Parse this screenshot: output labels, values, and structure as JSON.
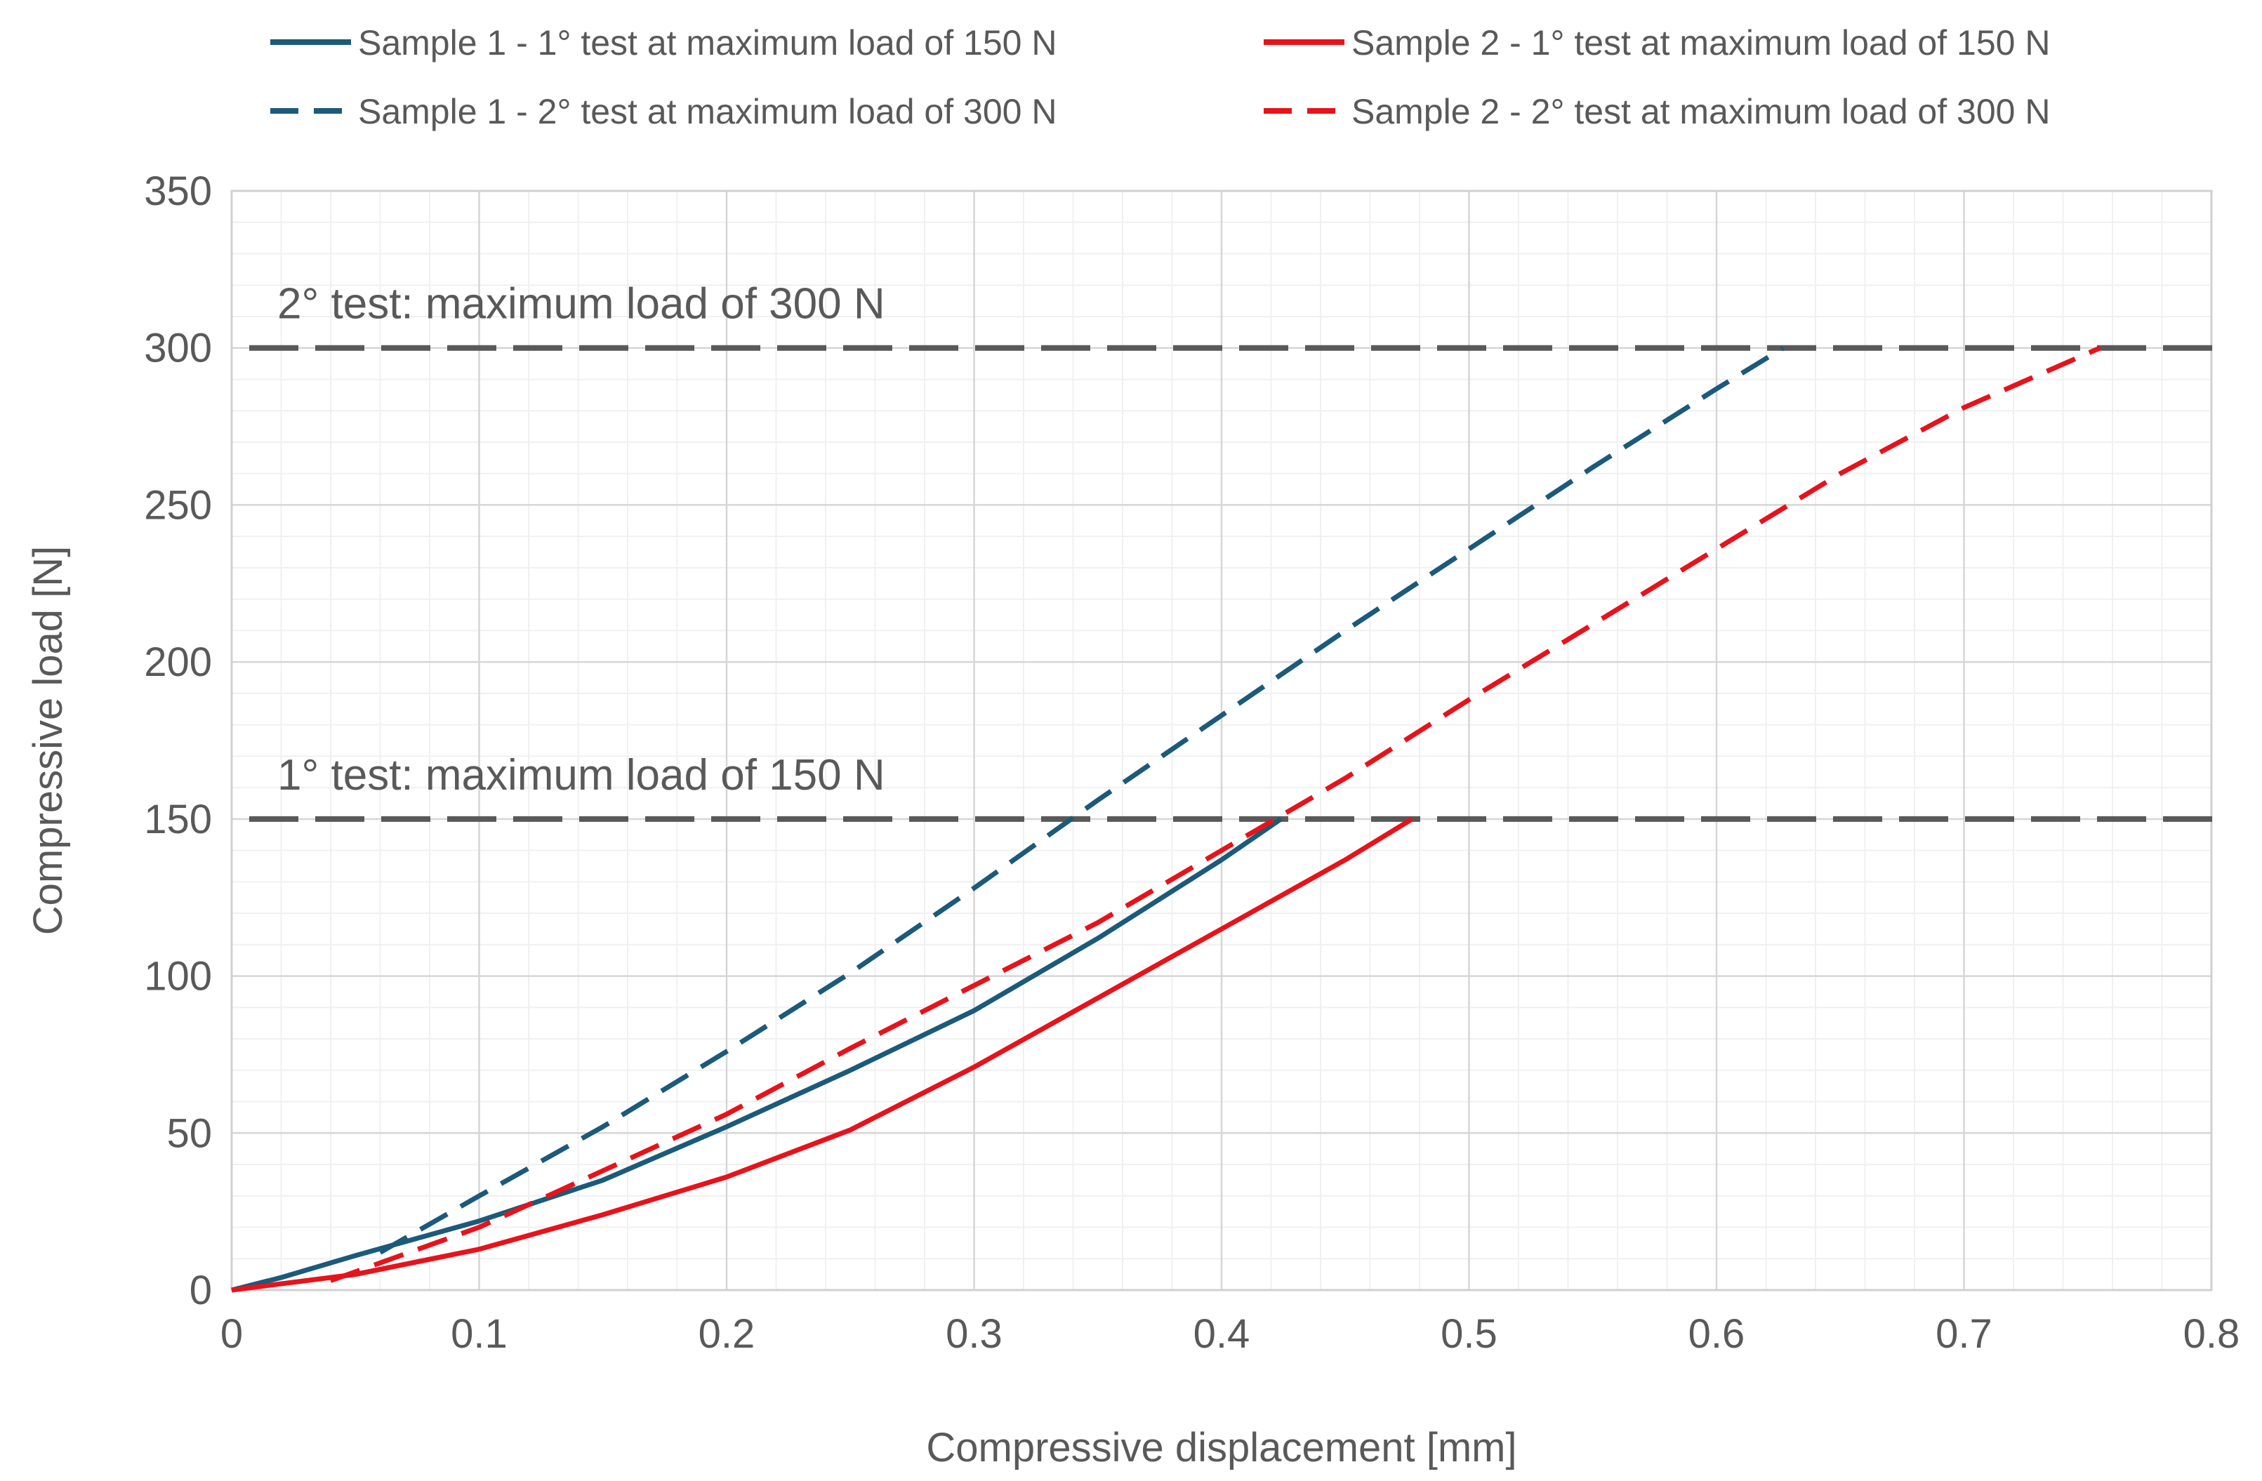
{
  "chart_data": {
    "type": "line",
    "title": "",
    "xlabel": "Compressive displacement [mm]",
    "ylabel": "Compressive load [N]",
    "xlim": [
      0,
      0.8
    ],
    "ylim": [
      0,
      350
    ],
    "x_ticks": [
      0,
      0.1,
      0.2,
      0.3,
      0.4,
      0.5,
      0.6,
      0.7,
      0.8
    ],
    "x_tick_labels": [
      "0",
      "0.1",
      "0.2",
      "0.3",
      "0.4",
      "0.5",
      "0.6",
      "0.7",
      "0.8"
    ],
    "y_ticks": [
      0,
      50,
      100,
      150,
      200,
      250,
      300,
      350
    ],
    "y_tick_labels": [
      "0",
      "50",
      "100",
      "150",
      "200",
      "250",
      "300",
      "350"
    ],
    "grid": true,
    "legend_position": "top",
    "series": [
      {
        "name": "Sample 1 - 1° test at maximum load of 150 N",
        "color": "#1B5A7A",
        "style": "solid",
        "x": [
          0,
          0.02,
          0.05,
          0.1,
          0.15,
          0.2,
          0.25,
          0.3,
          0.35,
          0.4,
          0.424
        ],
        "y": [
          0,
          4,
          11,
          22,
          35,
          52,
          70,
          89,
          112,
          137,
          150
        ]
      },
      {
        "name": "Sample 2 - 1° test at maximum load of 150 N",
        "color": "#E8121A",
        "style": "solid",
        "x": [
          0,
          0.05,
          0.1,
          0.15,
          0.2,
          0.25,
          0.3,
          0.35,
          0.4,
          0.45,
          0.477
        ],
        "y": [
          0,
          5,
          13,
          24,
          36,
          51,
          71,
          93,
          115,
          137,
          150
        ]
      },
      {
        "name": "Sample 1 - 2° test at maximum load of 300 N",
        "color": "#1B5A7A",
        "style": "dashed",
        "x": [
          0.06,
          0.1,
          0.15,
          0.2,
          0.25,
          0.3,
          0.35,
          0.4,
          0.45,
          0.5,
          0.55,
          0.6,
          0.627
        ],
        "y": [
          12,
          30,
          52,
          76,
          101,
          128,
          156,
          183,
          210,
          236,
          262,
          287,
          300
        ]
      },
      {
        "name": "Sample 2 - 2° test at maximum load of 300 N",
        "color": "#E8121A",
        "style": "dashed",
        "x": [
          0.04,
          0.1,
          0.15,
          0.2,
          0.25,
          0.3,
          0.35,
          0.4,
          0.45,
          0.5,
          0.55,
          0.6,
          0.65,
          0.7,
          0.755
        ],
        "y": [
          3,
          20,
          38,
          56,
          77,
          97,
          117,
          140,
          163,
          188,
          212,
          236,
          260,
          281,
          300
        ]
      }
    ],
    "reference_lines": [
      {
        "y": 300,
        "label": "2° test: maximum load of 300 N",
        "color": "#595959"
      },
      {
        "y": 150,
        "label": "1° test: maximum load of 150 N",
        "color": "#595959"
      }
    ]
  }
}
